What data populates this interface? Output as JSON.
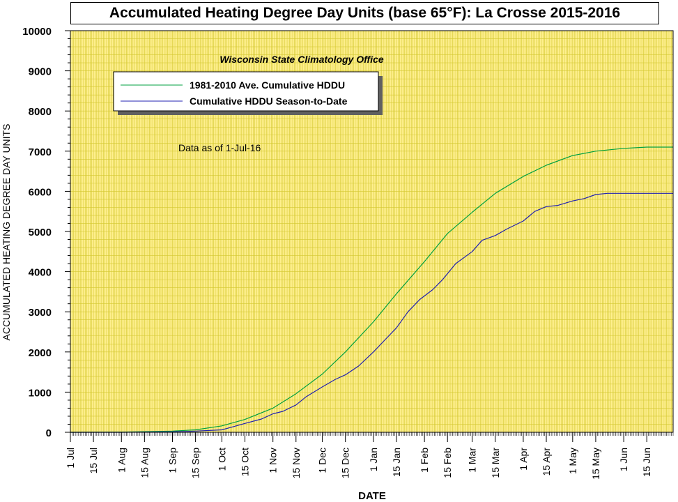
{
  "chart_data": {
    "type": "line",
    "title": "Accumulated Heating Degree Day Units (base 65°F): La Crosse 2015-2016",
    "subtitle": "Wisconsin State Climatology Office",
    "annotation": "Data as of 1-Jul-16",
    "xlabel": "DATE",
    "ylabel": "ACCUMULATED HEATING DEGREE DAY UNITS",
    "ylim": [
      0,
      10000
    ],
    "yticks": [
      0,
      1000,
      2000,
      3000,
      4000,
      5000,
      6000,
      7000,
      8000,
      9000,
      10000
    ],
    "xlim": [
      0,
      366
    ],
    "x_ticks": [
      {
        "day": 0,
        "label": "1 Jul"
      },
      {
        "day": 14,
        "label": "15 Jul"
      },
      {
        "day": 31,
        "label": "1 Aug"
      },
      {
        "day": 45,
        "label": "15 Aug"
      },
      {
        "day": 62,
        "label": "1 Sep"
      },
      {
        "day": 76,
        "label": "15 Sep"
      },
      {
        "day": 92,
        "label": "1 Oct"
      },
      {
        "day": 106,
        "label": "15 Oct"
      },
      {
        "day": 123,
        "label": "1 Nov"
      },
      {
        "day": 137,
        "label": "15 Nov"
      },
      {
        "day": 153,
        "label": "1 Dec"
      },
      {
        "day": 167,
        "label": "15 Dec"
      },
      {
        "day": 184,
        "label": "1 Jan"
      },
      {
        "day": 198,
        "label": "15 Jan"
      },
      {
        "day": 215,
        "label": "1 Feb"
      },
      {
        "day": 229,
        "label": "15 Feb"
      },
      {
        "day": 244,
        "label": "1 Mar"
      },
      {
        "day": 258,
        "label": "15 Mar"
      },
      {
        "day": 275,
        "label": "1 Apr"
      },
      {
        "day": 289,
        "label": "15 Apr"
      },
      {
        "day": 305,
        "label": "1 May"
      },
      {
        "day": 319,
        "label": "15 May"
      },
      {
        "day": 336,
        "label": "1 Jun"
      },
      {
        "day": 350,
        "label": "15 Jun"
      }
    ],
    "grid": true,
    "legend_position": "top-left",
    "colors": {
      "plot_bg": "#FFF090",
      "grid": "#D4C830",
      "normal": "#00A040",
      "season": "#2020B0"
    },
    "series": [
      {
        "name": "1981-2010 Ave. Cumulative HDDU",
        "color": "#00A040",
        "x": [
          0,
          31,
          45,
          62,
          76,
          92,
          106,
          123,
          137,
          153,
          167,
          184,
          198,
          215,
          229,
          244,
          258,
          275,
          289,
          305,
          319,
          336,
          350,
          366
        ],
        "values": [
          0,
          5,
          15,
          30,
          60,
          160,
          320,
          600,
          960,
          1450,
          2000,
          2750,
          3450,
          4250,
          4950,
          5480,
          5950,
          6370,
          6650,
          6890,
          7000,
          7070,
          7100,
          7100
        ]
      },
      {
        "name": "Cumulative HDDU Season-to-Date",
        "color": "#2020B0",
        "x": [
          0,
          31,
          45,
          62,
          76,
          92,
          99,
          106,
          116,
          123,
          129,
          137,
          143,
          153,
          161,
          167,
          175,
          184,
          191,
          198,
          205,
          212,
          220,
          226,
          234,
          244,
          250,
          258,
          265,
          275,
          282,
          289,
          296,
          305,
          312,
          319,
          326,
          336,
          350,
          366
        ],
        "values": [
          0,
          0,
          5,
          10,
          30,
          60,
          140,
          220,
          330,
          460,
          520,
          680,
          880,
          1130,
          1320,
          1430,
          1650,
          2000,
          2300,
          2600,
          3000,
          3300,
          3550,
          3800,
          4200,
          4500,
          4780,
          4900,
          5060,
          5260,
          5500,
          5620,
          5650,
          5760,
          5820,
          5920,
          5950,
          5950,
          5950,
          5950
        ]
      }
    ]
  }
}
